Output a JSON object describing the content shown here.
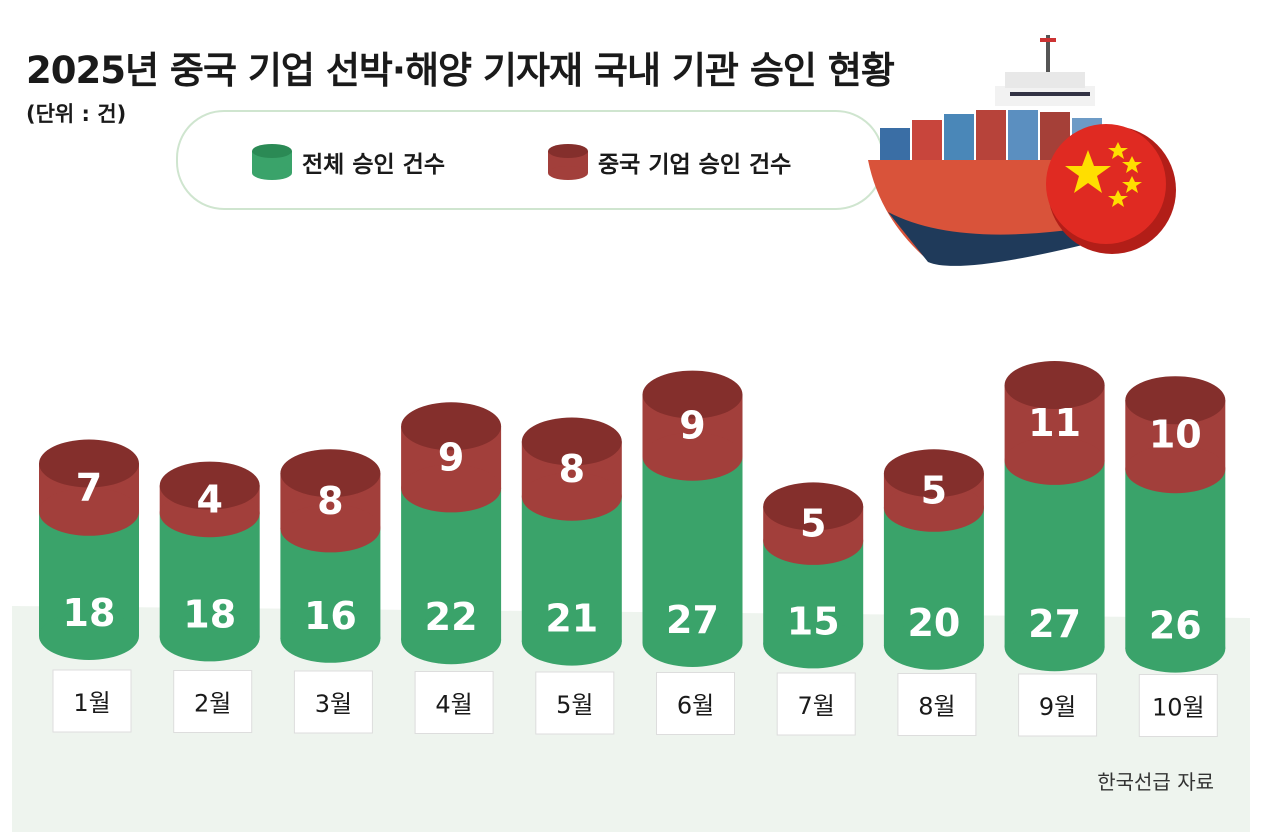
{
  "title": "2025년 중국 기업 선박·해양 기자재 국내 기관 승인 현황",
  "unit": "(단위 : 건)",
  "source": "한국선급 자료",
  "colors": {
    "total": "#3aa36a",
    "total_dark": "#2b8a55",
    "chinese": "#a23f3b",
    "chinese_dark": "#842f2c",
    "floor": "#eef4ee",
    "ship_hull": "#d9533a",
    "flag": "#e02a22",
    "star": "#ffde00"
  },
  "illustration": {
    "ship_icon": "cargo-ship-icon",
    "flag_icon": "china-flag-icon"
  },
  "chart_data": {
    "type": "bar",
    "stacked": true,
    "categories": [
      "1월",
      "2월",
      "3월",
      "4월",
      "5월",
      "6월",
      "7월",
      "8월",
      "9월",
      "10월"
    ],
    "series": [
      {
        "name": "전체 승인 건수",
        "values": [
          18,
          18,
          16,
          22,
          21,
          27,
          15,
          20,
          27,
          26
        ]
      },
      {
        "name": "중국 기업 승인 건수",
        "values": [
          7,
          4,
          8,
          9,
          8,
          9,
          5,
          5,
          11,
          10
        ]
      }
    ],
    "legend": "top",
    "grid": false
  }
}
